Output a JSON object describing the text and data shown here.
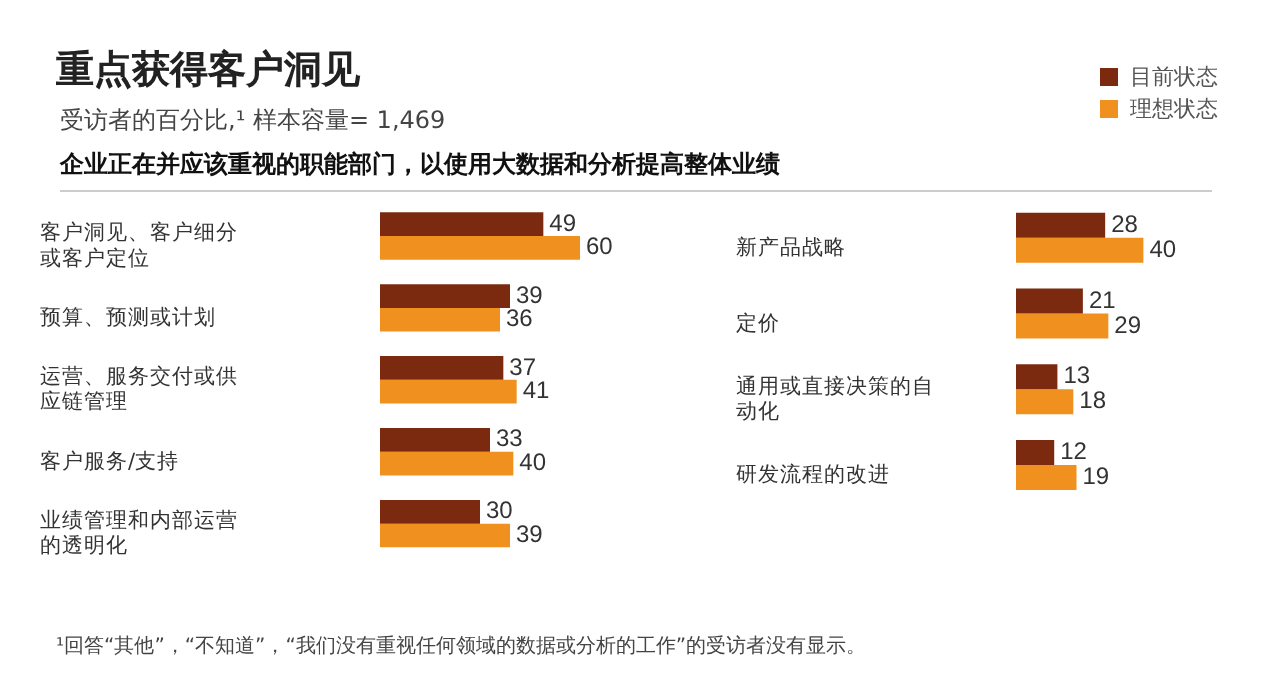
{
  "chart_data": [
    {
      "type": "bar",
      "orientation": "horizontal",
      "title": "重点获得客户洞见",
      "subtitle": "受访者的百分比,¹ 样本容量= 1,469",
      "annotations": [
        "企业正在并应该重视的职能部门，以使用大数据和分析提高整体业绩",
        "¹回答“其他”，“不知道”，“我们没有重视任何领域的数据或分析的工作”的受访者没有显示。"
      ],
      "categories": [
        "客户洞见、客户细分或客户定位",
        "预算、预测或计划",
        "运营、服务交付或供应链管理",
        "客户服务/支持",
        "业绩管理和内部运营的透明化"
      ],
      "series": [
        {
          "name": "目前状态",
          "color": "#7b2a10",
          "values": [
            49,
            39,
            37,
            33,
            30
          ]
        },
        {
          "name": "理想状态",
          "color": "#f0901e",
          "values": [
            60,
            36,
            41,
            40,
            39
          ]
        }
      ],
      "data_labels": true,
      "grid": false,
      "legend": "top right"
    },
    {
      "type": "bar",
      "orientation": "horizontal",
      "categories": [
        "新产品战略",
        "定价",
        "通用或直接决策的自动化",
        "研发流程的改进"
      ],
      "series": [
        {
          "color": "#7b2a10",
          "values": [
            28,
            21,
            13,
            12
          ]
        },
        {
          "color": "#f0901e",
          "values": [
            40,
            29,
            18,
            19
          ]
        }
      ],
      "data_labels": true,
      "grid": false
    }
  ]
}
